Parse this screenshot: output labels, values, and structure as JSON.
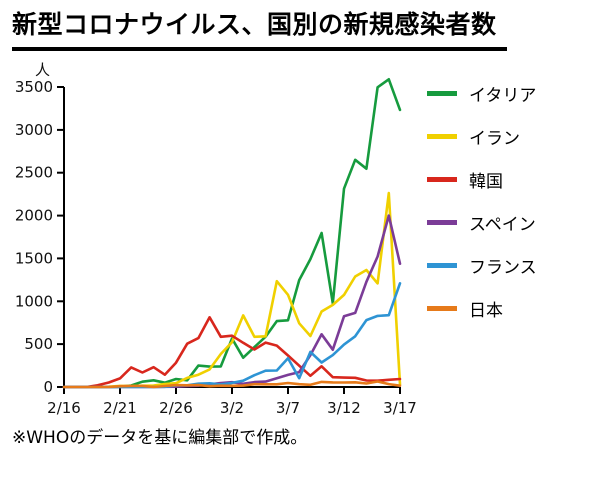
{
  "title": "新型コロナウイルス、国別の新規感染者数",
  "source_note": "※WHOのデータを基に編集部で作成。",
  "chart_data": {
    "type": "line",
    "title": "新型コロナウイルス、国別の新規感染者数",
    "xlabel": "",
    "ylabel": "人",
    "ylim": [
      0,
      3500
    ],
    "y_ticks": [
      0,
      500,
      1000,
      1500,
      2000,
      2500,
      3000,
      3500
    ],
    "grid": false,
    "legend_position": "right",
    "x": [
      "2/16",
      "2/17",
      "2/18",
      "2/19",
      "2/20",
      "2/21",
      "2/22",
      "2/23",
      "2/24",
      "2/25",
      "2/26",
      "2/27",
      "2/28",
      "2/29",
      "3/1",
      "3/2",
      "3/3",
      "3/4",
      "3/5",
      "3/6",
      "3/7",
      "3/8",
      "3/9",
      "3/10",
      "3/11",
      "3/12",
      "3/13",
      "3/14",
      "3/15",
      "3/16",
      "3/17"
    ],
    "x_tick_indices": [
      0,
      5,
      10,
      15,
      20,
      25,
      30
    ],
    "x_tick_labels": [
      "2/16",
      "2/21",
      "2/26",
      "3/2",
      "3/7",
      "3/12",
      "3/17"
    ],
    "series": [
      {
        "name": "イタリア",
        "color": "#169b3e",
        "values": [
          0,
          0,
          0,
          0,
          0,
          3,
          17,
          62,
          78,
          50,
          93,
          78,
          250,
          238,
          240,
          566,
          342,
          466,
          587,
          769,
          778,
          1247,
          1492,
          1797,
          977,
          2313,
          2651,
          2547,
          3497,
          3590,
          3233
        ]
      },
      {
        "name": "イラン",
        "color": "#f0d000",
        "values": [
          0,
          0,
          0,
          2,
          3,
          13,
          10,
          15,
          18,
          34,
          44,
          106,
          143,
          205,
          385,
          523,
          835,
          586,
          591,
          1234,
          1076,
          743,
          595,
          881,
          958,
          1075,
          1289,
          1365,
          1209,
          2262,
          29
        ]
      },
      {
        "name": "韓国",
        "color": "#d8271d",
        "values": [
          0,
          0,
          0,
          20,
          53,
          100,
          229,
          169,
          231,
          144,
          284,
          505,
          571,
          813,
          586,
          599,
          516,
          438,
          518,
          483,
          367,
          248,
          131,
          242,
          114,
          110,
          107,
          76,
          74,
          84,
          93
        ]
      },
      {
        "name": "スペイン",
        "color": "#7b3c97",
        "values": [
          0,
          0,
          0,
          0,
          0,
          0,
          0,
          0,
          0,
          2,
          4,
          10,
          15,
          32,
          45,
          56,
          37,
          57,
          63,
          103,
          141,
          174,
          372,
          615,
          435,
          825,
          864,
          1227,
          1522,
          2000,
          1438
        ]
      },
      {
        "name": "フランス",
        "color": "#2e94d4",
        "values": [
          0,
          0,
          0,
          0,
          0,
          0,
          0,
          0,
          1,
          2,
          18,
          20,
          38,
          43,
          30,
          48,
          73,
          138,
          190,
          193,
          336,
          103,
          410,
          286,
          372,
          495,
          591,
          780,
          829,
          838,
          1210
        ]
      },
      {
        "name": "日本",
        "color": "#e67a1a",
        "values": [
          0,
          0,
          0,
          0,
          0,
          9,
          12,
          13,
          0,
          12,
          22,
          20,
          22,
          9,
          15,
          14,
          16,
          33,
          31,
          32,
          47,
          33,
          26,
          59,
          54,
          52,
          55,
          41,
          64,
          34,
          15
        ]
      }
    ]
  }
}
